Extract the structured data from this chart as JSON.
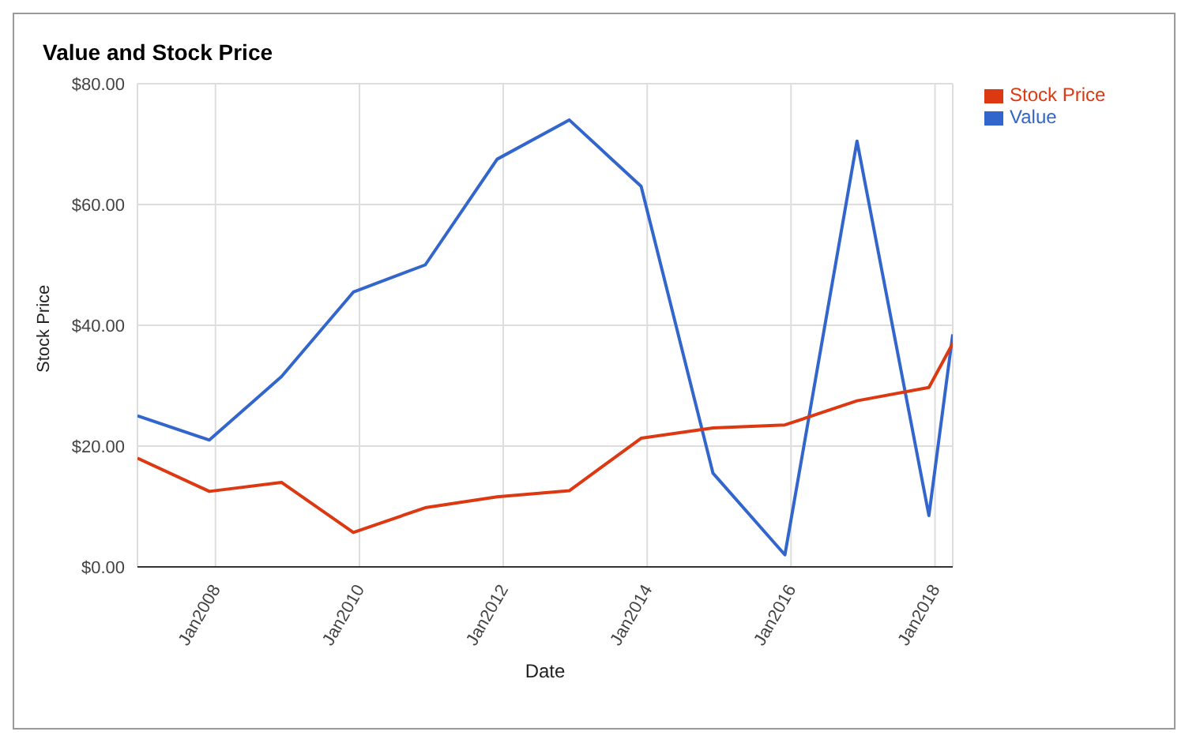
{
  "chart_data": {
    "type": "line",
    "title": "Value and Stock Price",
    "xlabel": "Date",
    "ylabel": "Stock Price",
    "x": [
      "2006-12",
      "2007-12",
      "2008-12",
      "2009-12",
      "2010-12",
      "2011-12",
      "2012-12",
      "2013-12",
      "2014-12",
      "2015-12",
      "2016-12",
      "2017-12",
      "2018-04"
    ],
    "series": [
      {
        "name": "Value",
        "color": "#3366cc",
        "values": [
          25,
          21,
          31.5,
          45.5,
          50,
          67.5,
          74,
          63,
          15.5,
          2,
          70.5,
          8.5,
          38.5
        ]
      },
      {
        "name": "Stock Price",
        "color": "#dc3912",
        "values": [
          18,
          12.5,
          14,
          5.7,
          9.8,
          11.6,
          12.6,
          21.3,
          23,
          23.5,
          27.5,
          29.7,
          37
        ]
      }
    ],
    "xlim": [
      "2006-12",
      "2018-04"
    ],
    "xticks": [
      {
        "value": "2008-01",
        "label": "Jan2008"
      },
      {
        "value": "2010-01",
        "label": "Jan2010"
      },
      {
        "value": "2012-01",
        "label": "Jan2012"
      },
      {
        "value": "2014-01",
        "label": "Jan2014"
      },
      {
        "value": "2016-01",
        "label": "Jan2016"
      },
      {
        "value": "2018-01",
        "label": "Jan2018"
      }
    ],
    "ylim": [
      0,
      80
    ],
    "yticks": [
      {
        "value": 0,
        "label": "$0.00"
      },
      {
        "value": 20,
        "label": "$20.00"
      },
      {
        "value": 40,
        "label": "$40.00"
      },
      {
        "value": 60,
        "label": "$60.00"
      },
      {
        "value": 80,
        "label": "$80.00"
      }
    ],
    "grid": true,
    "legend": "top right",
    "marker": "none",
    "line_style": "solid"
  }
}
